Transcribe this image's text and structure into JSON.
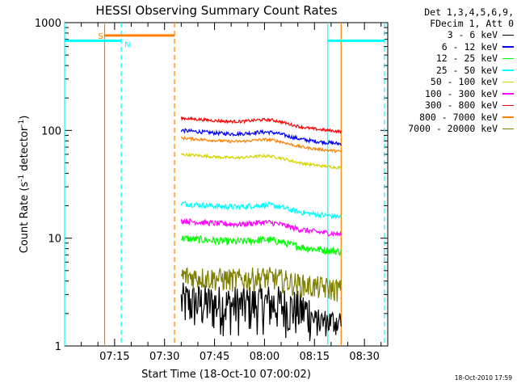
{
  "chart_data": {
    "type": "line",
    "title": "HESSI Observing Summary Count Rates",
    "xlabel": "Start Time (18-Oct-10 07:00:02)",
    "ylabel_main": "Count Rate (s",
    "ylabel_sup1": "-1",
    "ylabel_mid": " detector",
    "ylabel_sup2": "-1",
    "ylabel_end": ")",
    "y_scale": "log",
    "ylim": [
      1,
      1000
    ],
    "xlim_minutes": [
      0,
      97
    ],
    "x_ticks": [
      {
        "m": 15,
        "label": "07:15"
      },
      {
        "m": 30,
        "label": "07:30"
      },
      {
        "m": 45,
        "label": "07:45"
      },
      {
        "m": 60,
        "label": "08:00"
      },
      {
        "m": 75,
        "label": "08:15"
      },
      {
        "m": 90,
        "label": "08:30"
      }
    ],
    "y_ticks": [
      {
        "v": 1,
        "label": "1"
      },
      {
        "v": 10,
        "label": "10"
      },
      {
        "v": 100,
        "label": "100"
      },
      {
        "v": 1000,
        "label": "1000"
      }
    ],
    "legend_header": [
      "Det 1,3,4,5,6,9,",
      "FDecim 1, Att 0"
    ],
    "series": [
      {
        "name": "3 - 6 keV",
        "color": "#000000",
        "base": 2.6,
        "noise": 0.5
      },
      {
        "name": "6 - 12 keV",
        "color": "#0000ff",
        "base": 100,
        "noise": 0.04
      },
      {
        "name": "12 - 25 keV",
        "color": "#00ff00",
        "base": 10,
        "noise": 0.08
      },
      {
        "name": "25 - 50 keV",
        "color": "#00ffff",
        "base": 21,
        "noise": 0.06
      },
      {
        "name": "50 - 100 keV",
        "color": "#d4d400",
        "base": 60,
        "noise": 0.03
      },
      {
        "name": "100 - 300 keV",
        "color": "#ff00ff",
        "base": 14.5,
        "noise": 0.06
      },
      {
        "name": "300 - 800 keV",
        "color": "#ff0000",
        "base": 130,
        "noise": 0.03
      },
      {
        "name": "800 - 7000 keV",
        "color": "#ff8000",
        "base": 85,
        "noise": 0.03
      },
      {
        "name": "7000 - 20000 keV",
        "color": "#808000",
        "base": 4.5,
        "noise": 0.25
      }
    ],
    "data_start_minute": 35,
    "data_end_minute": 83,
    "saa_markers": [
      {
        "label": "S",
        "color": "#ff8000",
        "start": 12,
        "end": 33,
        "level": 760
      },
      {
        "label": "N",
        "color": "#00ffff",
        "start": 0,
        "end": 17,
        "level": 680
      }
    ],
    "night_marker_right": {
      "color": "#00ffff",
      "start": 79,
      "end": 96,
      "level": 680
    },
    "vertical_lines": [
      {
        "m": 0,
        "color": "#00ffff",
        "style": "solid"
      },
      {
        "m": 12,
        "color": "#ff8000",
        "style": "solid"
      },
      {
        "m": 17,
        "color": "#00ffff",
        "style": "dashed"
      },
      {
        "m": 33,
        "color": "#ff8000",
        "style": "dashed"
      },
      {
        "m": 79,
        "color": "#00ffff",
        "style": "solid"
      },
      {
        "m": 83,
        "color": "#ff8000",
        "style": "solid"
      },
      {
        "m": 96,
        "color": "#00ffff",
        "style": "dashed"
      }
    ]
  },
  "timestamp": "18-Oct-2010 17:59"
}
